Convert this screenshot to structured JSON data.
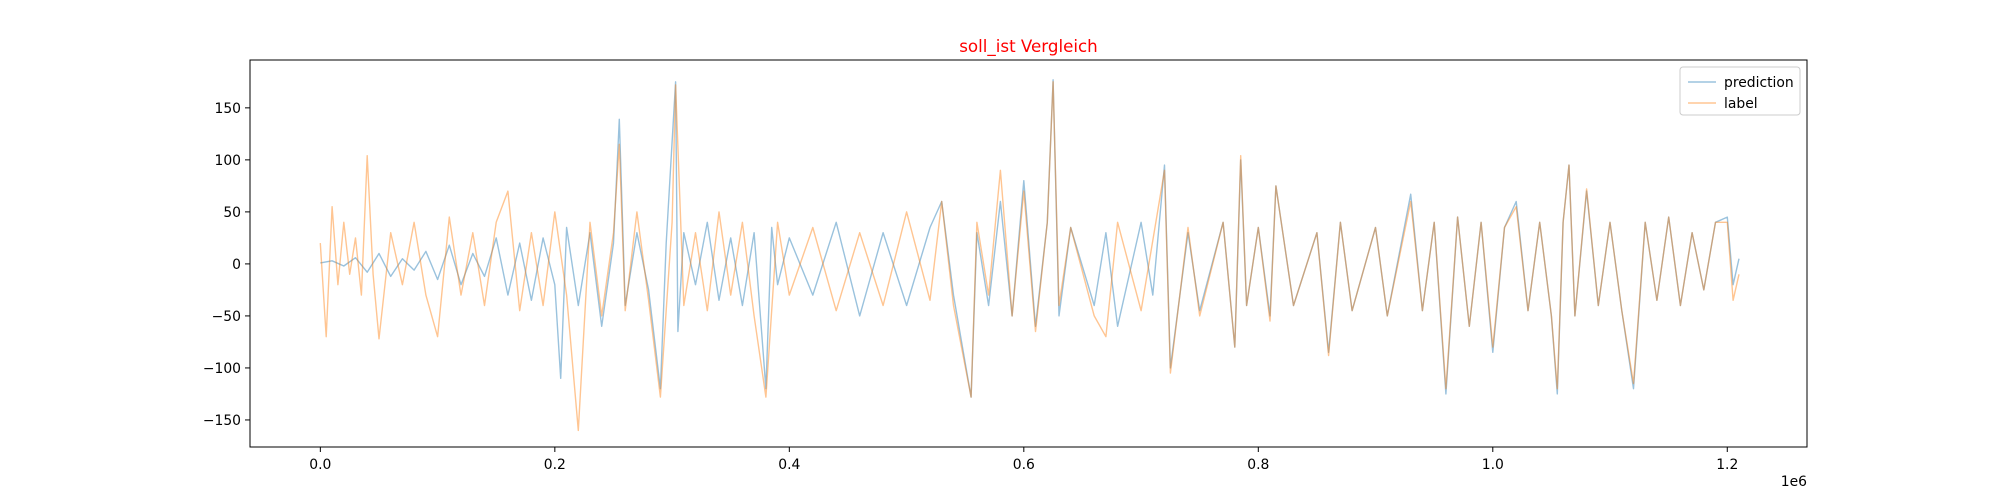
{
  "chart_data": {
    "type": "line",
    "title": "soll_ist Vergleich",
    "title_color": "#ff0000",
    "xlabel": "",
    "ylabel": "",
    "x_offset_label": "1e6",
    "xlim": [
      -0.06,
      1.268
    ],
    "ylim": [
      -176,
      196
    ],
    "x_ticks": [
      0.0,
      0.2,
      0.4,
      0.6,
      0.8,
      1.0,
      1.2
    ],
    "x_tick_labels": [
      "0.0",
      "0.2",
      "0.4",
      "0.6",
      "0.8",
      "1.0",
      "1.2"
    ],
    "y_ticks": [
      -150,
      -100,
      -50,
      0,
      50,
      100,
      150
    ],
    "y_tick_labels": [
      "−150",
      "−100",
      "−50",
      "0",
      "50",
      "100",
      "150"
    ],
    "grid": false,
    "legend_position": "top-right",
    "series": [
      {
        "name": "prediction",
        "color": "#1f77b4",
        "alpha": 0.45,
        "points": [
          [
            0.0,
            1
          ],
          [
            0.01,
            3
          ],
          [
            0.02,
            -2
          ],
          [
            0.03,
            6
          ],
          [
            0.04,
            -8
          ],
          [
            0.05,
            10
          ],
          [
            0.06,
            -12
          ],
          [
            0.07,
            5
          ],
          [
            0.08,
            -6
          ],
          [
            0.09,
            12
          ],
          [
            0.1,
            -15
          ],
          [
            0.11,
            18
          ],
          [
            0.12,
            -20
          ],
          [
            0.13,
            10
          ],
          [
            0.14,
            -12
          ],
          [
            0.15,
            25
          ],
          [
            0.16,
            -30
          ],
          [
            0.17,
            20
          ],
          [
            0.18,
            -35
          ],
          [
            0.19,
            25
          ],
          [
            0.2,
            -20
          ],
          [
            0.205,
            -110
          ],
          [
            0.21,
            35
          ],
          [
            0.22,
            -40
          ],
          [
            0.23,
            30
          ],
          [
            0.24,
            -60
          ],
          [
            0.25,
            20
          ],
          [
            0.255,
            139
          ],
          [
            0.26,
            -40
          ],
          [
            0.27,
            30
          ],
          [
            0.28,
            -25
          ],
          [
            0.29,
            -120
          ],
          [
            0.295,
            20
          ],
          [
            0.303,
            175
          ],
          [
            0.305,
            -65
          ],
          [
            0.31,
            30
          ],
          [
            0.32,
            -20
          ],
          [
            0.33,
            40
          ],
          [
            0.34,
            -35
          ],
          [
            0.35,
            25
          ],
          [
            0.36,
            -40
          ],
          [
            0.37,
            30
          ],
          [
            0.38,
            -120
          ],
          [
            0.385,
            35
          ],
          [
            0.39,
            -20
          ],
          [
            0.4,
            25
          ],
          [
            0.42,
            -30
          ],
          [
            0.44,
            40
          ],
          [
            0.46,
            -50
          ],
          [
            0.48,
            30
          ],
          [
            0.5,
            -40
          ],
          [
            0.52,
            35
          ],
          [
            0.53,
            60
          ],
          [
            0.54,
            -30
          ],
          [
            0.555,
            -128
          ],
          [
            0.56,
            30
          ],
          [
            0.57,
            -40
          ],
          [
            0.58,
            60
          ],
          [
            0.59,
            -50
          ],
          [
            0.6,
            80
          ],
          [
            0.61,
            -60
          ],
          [
            0.62,
            40
          ],
          [
            0.625,
            177
          ],
          [
            0.63,
            -50
          ],
          [
            0.64,
            35
          ],
          [
            0.66,
            -40
          ],
          [
            0.67,
            30
          ],
          [
            0.68,
            -60
          ],
          [
            0.7,
            40
          ],
          [
            0.71,
            -30
          ],
          [
            0.72,
            95
          ],
          [
            0.725,
            -100
          ],
          [
            0.74,
            30
          ],
          [
            0.75,
            -45
          ],
          [
            0.77,
            40
          ],
          [
            0.78,
            -80
          ],
          [
            0.785,
            100
          ],
          [
            0.79,
            -40
          ],
          [
            0.8,
            35
          ],
          [
            0.81,
            -50
          ],
          [
            0.815,
            75
          ],
          [
            0.83,
            -40
          ],
          [
            0.85,
            30
          ],
          [
            0.86,
            -85
          ],
          [
            0.87,
            40
          ],
          [
            0.88,
            -45
          ],
          [
            0.9,
            35
          ],
          [
            0.91,
            -50
          ],
          [
            0.93,
            67
          ],
          [
            0.94,
            -45
          ],
          [
            0.95,
            40
          ],
          [
            0.96,
            -125
          ],
          [
            0.97,
            45
          ],
          [
            0.98,
            -60
          ],
          [
            0.99,
            40
          ],
          [
            1.0,
            -85
          ],
          [
            1.01,
            35
          ],
          [
            1.02,
            60
          ],
          [
            1.03,
            -45
          ],
          [
            1.04,
            40
          ],
          [
            1.05,
            -50
          ],
          [
            1.055,
            -125
          ],
          [
            1.06,
            40
          ],
          [
            1.065,
            95
          ],
          [
            1.07,
            -50
          ],
          [
            1.08,
            70
          ],
          [
            1.09,
            -40
          ],
          [
            1.1,
            40
          ],
          [
            1.11,
            -45
          ],
          [
            1.12,
            -120
          ],
          [
            1.13,
            40
          ],
          [
            1.14,
            -35
          ],
          [
            1.15,
            45
          ],
          [
            1.16,
            -40
          ],
          [
            1.17,
            30
          ],
          [
            1.18,
            -25
          ],
          [
            1.19,
            40
          ],
          [
            1.2,
            45
          ],
          [
            1.205,
            -20
          ],
          [
            1.21,
            5
          ]
        ]
      },
      {
        "name": "label",
        "color": "#ff7f0e",
        "alpha": 0.45,
        "points": [
          [
            0.0,
            20
          ],
          [
            0.005,
            -70
          ],
          [
            0.01,
            55
          ],
          [
            0.015,
            -20
          ],
          [
            0.02,
            40
          ],
          [
            0.025,
            -10
          ],
          [
            0.03,
            25
          ],
          [
            0.035,
            -30
          ],
          [
            0.04,
            104
          ],
          [
            0.045,
            -10
          ],
          [
            0.05,
            -72
          ],
          [
            0.06,
            30
          ],
          [
            0.07,
            -20
          ],
          [
            0.08,
            40
          ],
          [
            0.09,
            -30
          ],
          [
            0.1,
            -70
          ],
          [
            0.11,
            45
          ],
          [
            0.12,
            -30
          ],
          [
            0.13,
            30
          ],
          [
            0.14,
            -40
          ],
          [
            0.15,
            40
          ],
          [
            0.16,
            70
          ],
          [
            0.17,
            -45
          ],
          [
            0.18,
            30
          ],
          [
            0.19,
            -40
          ],
          [
            0.2,
            50
          ],
          [
            0.21,
            -30
          ],
          [
            0.22,
            -160
          ],
          [
            0.23,
            40
          ],
          [
            0.24,
            -50
          ],
          [
            0.25,
            30
          ],
          [
            0.255,
            115
          ],
          [
            0.26,
            -45
          ],
          [
            0.27,
            50
          ],
          [
            0.28,
            -35
          ],
          [
            0.29,
            -128
          ],
          [
            0.3,
            40
          ],
          [
            0.303,
            172
          ],
          [
            0.31,
            -40
          ],
          [
            0.32,
            30
          ],
          [
            0.33,
            -45
          ],
          [
            0.34,
            50
          ],
          [
            0.35,
            -30
          ],
          [
            0.36,
            40
          ],
          [
            0.37,
            -50
          ],
          [
            0.38,
            -128
          ],
          [
            0.39,
            40
          ],
          [
            0.4,
            -30
          ],
          [
            0.42,
            35
          ],
          [
            0.44,
            -45
          ],
          [
            0.46,
            30
          ],
          [
            0.48,
            -40
          ],
          [
            0.5,
            50
          ],
          [
            0.52,
            -35
          ],
          [
            0.53,
            60
          ],
          [
            0.54,
            -40
          ],
          [
            0.555,
            -128
          ],
          [
            0.56,
            40
          ],
          [
            0.57,
            -30
          ],
          [
            0.58,
            90
          ],
          [
            0.59,
            -50
          ],
          [
            0.6,
            70
          ],
          [
            0.61,
            -65
          ],
          [
            0.62,
            40
          ],
          [
            0.625,
            175
          ],
          [
            0.63,
            -40
          ],
          [
            0.64,
            35
          ],
          [
            0.66,
            -50
          ],
          [
            0.67,
            -70
          ],
          [
            0.68,
            40
          ],
          [
            0.7,
            -45
          ],
          [
            0.72,
            90
          ],
          [
            0.725,
            -105
          ],
          [
            0.74,
            35
          ],
          [
            0.75,
            -50
          ],
          [
            0.77,
            40
          ],
          [
            0.78,
            -80
          ],
          [
            0.785,
            104
          ],
          [
            0.79,
            -40
          ],
          [
            0.8,
            35
          ],
          [
            0.81,
            -55
          ],
          [
            0.815,
            75
          ],
          [
            0.83,
            -40
          ],
          [
            0.85,
            30
          ],
          [
            0.86,
            -88
          ],
          [
            0.87,
            40
          ],
          [
            0.88,
            -45
          ],
          [
            0.9,
            35
          ],
          [
            0.91,
            -50
          ],
          [
            0.93,
            60
          ],
          [
            0.94,
            -45
          ],
          [
            0.95,
            40
          ],
          [
            0.96,
            -120
          ],
          [
            0.97,
            45
          ],
          [
            0.98,
            -60
          ],
          [
            0.99,
            40
          ],
          [
            1.0,
            -80
          ],
          [
            1.01,
            35
          ],
          [
            1.02,
            55
          ],
          [
            1.03,
            -45
          ],
          [
            1.04,
            40
          ],
          [
            1.05,
            -50
          ],
          [
            1.055,
            -120
          ],
          [
            1.06,
            40
          ],
          [
            1.065,
            95
          ],
          [
            1.07,
            -50
          ],
          [
            1.08,
            72
          ],
          [
            1.09,
            -40
          ],
          [
            1.1,
            40
          ],
          [
            1.11,
            -45
          ],
          [
            1.12,
            -115
          ],
          [
            1.13,
            40
          ],
          [
            1.14,
            -35
          ],
          [
            1.15,
            45
          ],
          [
            1.16,
            -40
          ],
          [
            1.17,
            30
          ],
          [
            1.18,
            -25
          ],
          [
            1.19,
            40
          ],
          [
            1.2,
            40
          ],
          [
            1.205,
            -35
          ],
          [
            1.21,
            -10
          ]
        ]
      }
    ]
  }
}
